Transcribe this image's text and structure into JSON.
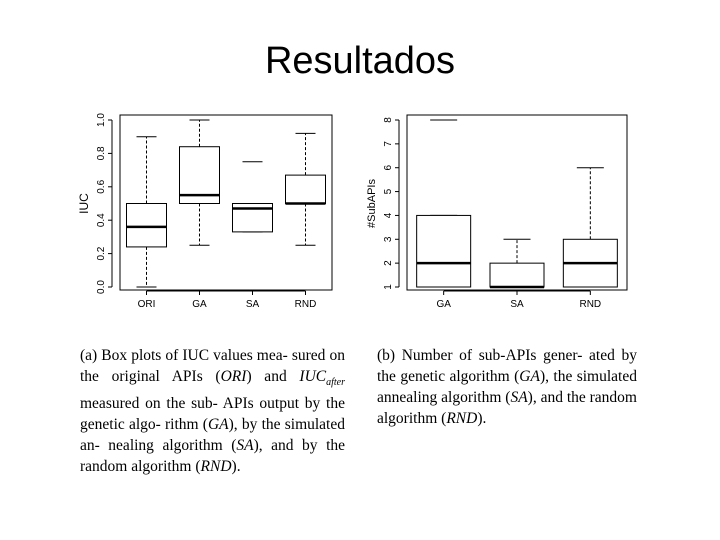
{
  "slide": {
    "title": "Resultados"
  },
  "captions": {
    "a": {
      "label": "(a)",
      "p1": "Box plots of IUC values mea- sured on the original APIs (",
      "ori": "ORI",
      "p2": ") and ",
      "iuc": "IUC",
      "after": "after",
      "p3": " measured on the sub- APIs output by the genetic algo- rithm (",
      "ga": "GA",
      "p4": "), by the simulated an- nealing algorithm (",
      "sa": "SA",
      "p5": "), and by the random algorithm (",
      "rnd": "RND",
      "p6": ")."
    },
    "b": {
      "label": "(b)",
      "p1": "Number of sub-APIs gener- ated by the genetic algorithm (",
      "ga": "GA",
      "p2": "), the simulated annealing algorithm (",
      "sa": "SA",
      "p3": "), and the random algorithm (",
      "rnd": "RND",
      "p4": ")."
    }
  },
  "chart_data": [
    {
      "type": "boxplot",
      "ylabel": "IUC",
      "ylim": [
        0.0,
        1.0
      ],
      "yticks": [
        "0.0",
        "0.2",
        "0.4",
        "0.6",
        "0.8",
        "1.0"
      ],
      "ytick_values": [
        0.0,
        0.2,
        0.4,
        0.6,
        0.8,
        1.0
      ],
      "categories": [
        "ORI",
        "GA",
        "SA",
        "RND"
      ],
      "boxes": [
        {
          "category": "ORI",
          "min": 0.0,
          "q1": 0.24,
          "median": 0.36,
          "q3": 0.5,
          "max": 0.9
        },
        {
          "category": "GA",
          "min": 0.25,
          "q1": 0.5,
          "median": 0.55,
          "q3": 0.84,
          "max": 1.0
        },
        {
          "category": "SA",
          "min": 0.33,
          "q1": 0.33,
          "median": 0.47,
          "q3": 0.5,
          "max": 0.5
        },
        {
          "category": "RND",
          "min": 0.25,
          "q1": 0.5,
          "median": 0.5,
          "q3": 0.67,
          "max": 0.92
        }
      ],
      "outliers": [
        {
          "category": "SA",
          "value": 0.75
        }
      ]
    },
    {
      "type": "boxplot",
      "ylabel": "#SubAPIs",
      "ylim": [
        1,
        8
      ],
      "yticks": [
        "1",
        "2",
        "3",
        "4",
        "5",
        "6",
        "7",
        "8"
      ],
      "ytick_values": [
        1,
        2,
        3,
        4,
        5,
        6,
        7,
        8
      ],
      "categories": [
        "GA",
        "SA",
        "RND"
      ],
      "boxes": [
        {
          "category": "GA",
          "min": 1,
          "q1": 1,
          "median": 2,
          "q3": 4,
          "max": 4
        },
        {
          "category": "SA",
          "min": 1,
          "q1": 1,
          "median": 1,
          "q3": 2,
          "max": 3
        },
        {
          "category": "RND",
          "min": 1,
          "q1": 1,
          "median": 2,
          "q3": 3,
          "max": 6
        }
      ],
      "outliers": [
        {
          "category": "GA",
          "value": 8
        }
      ]
    }
  ]
}
